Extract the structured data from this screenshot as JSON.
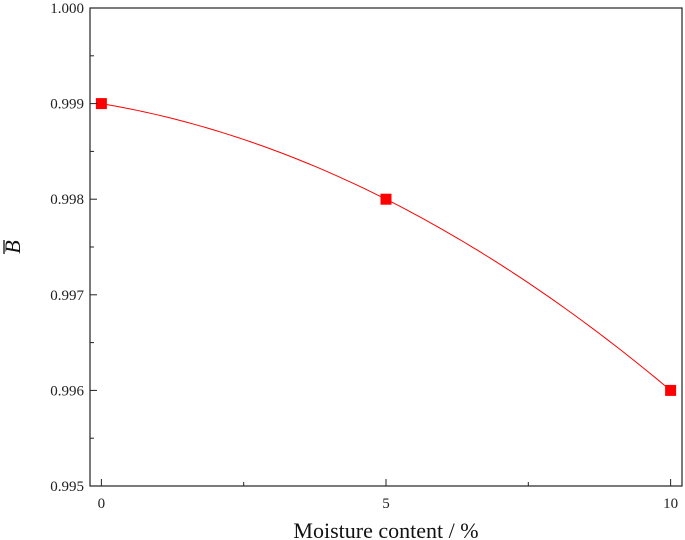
{
  "chart_data": {
    "type": "line",
    "title": "",
    "xlabel": "Moisture content / %",
    "ylabel": "B",
    "ylabel_overline": true,
    "x": [
      0,
      5,
      10
    ],
    "series": [
      {
        "values": [
          0.999,
          0.998,
          0.996
        ],
        "color": "#ff0000",
        "marker": "square",
        "curve": "smooth"
      }
    ],
    "xlim": [
      -0.2,
      10.2
    ],
    "ylim": [
      0.995,
      1.0
    ],
    "x_ticks": [
      0,
      5,
      10
    ],
    "x_tick_labels": [
      "0",
      "5",
      "10"
    ],
    "y_ticks": [
      0.995,
      0.996,
      0.997,
      0.998,
      0.999,
      1.0
    ],
    "y_tick_labels": [
      "0.995",
      "0.996",
      "0.997",
      "0.998",
      "0.999",
      "1.000"
    ],
    "grid": false,
    "legend": "none"
  }
}
